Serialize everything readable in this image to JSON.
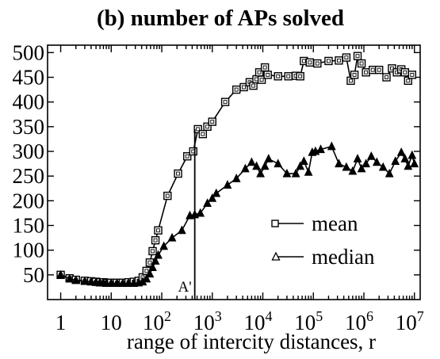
{
  "chart_data": {
    "type": "line",
    "title": "(b) number of APs solved",
    "xlabel": "range of intercity distances, r",
    "ylabel": "",
    "x_scale": "log",
    "xlim": [
      0.55,
      13000000
    ],
    "ylim": [
      0,
      515
    ],
    "x_ticks": [
      {
        "value": 1,
        "label": "1",
        "base": "1",
        "exp": ""
      },
      {
        "value": 10,
        "label": "10",
        "base": "10",
        "exp": ""
      },
      {
        "value": 100,
        "label": "10^2",
        "base": "10",
        "exp": "2"
      },
      {
        "value": 1000,
        "label": "10^3",
        "base": "10",
        "exp": "3"
      },
      {
        "value": 10000,
        "label": "10^4",
        "base": "10",
        "exp": "4"
      },
      {
        "value": 100000,
        "label": "10^5",
        "base": "10",
        "exp": "5"
      },
      {
        "value": 1000000,
        "label": "10^6",
        "base": "10",
        "exp": "6"
      },
      {
        "value": 10000000,
        "label": "10^7",
        "base": "10",
        "exp": "7"
      }
    ],
    "y_ticks": [
      {
        "value": 50,
        "label": "50"
      },
      {
        "value": 100,
        "label": "100"
      },
      {
        "value": 150,
        "label": "150"
      },
      {
        "value": 200,
        "label": "200"
      },
      {
        "value": 250,
        "label": "250"
      },
      {
        "value": 300,
        "label": "300"
      },
      {
        "value": 350,
        "label": "350"
      },
      {
        "value": 400,
        "label": "400"
      },
      {
        "value": 450,
        "label": "450"
      },
      {
        "value": 500,
        "label": "500"
      }
    ],
    "grid": false,
    "legend_position": "center-right",
    "annotation": {
      "label": "A'",
      "x": 450
    },
    "series": [
      {
        "name": "mean",
        "marker": "square",
        "points": [
          {
            "x": 1,
            "y": 50
          },
          {
            "x": 1.5,
            "y": 43
          },
          {
            "x": 2,
            "y": 40
          },
          {
            "x": 3,
            "y": 38
          },
          {
            "x": 4,
            "y": 37
          },
          {
            "x": 5,
            "y": 36
          },
          {
            "x": 6,
            "y": 35
          },
          {
            "x": 7,
            "y": 35
          },
          {
            "x": 8,
            "y": 34
          },
          {
            "x": 10,
            "y": 34
          },
          {
            "x": 13,
            "y": 34
          },
          {
            "x": 17,
            "y": 34
          },
          {
            "x": 22,
            "y": 35
          },
          {
            "x": 28,
            "y": 36
          },
          {
            "x": 35,
            "y": 38
          },
          {
            "x": 42,
            "y": 45
          },
          {
            "x": 50,
            "y": 58
          },
          {
            "x": 58,
            "y": 75
          },
          {
            "x": 66,
            "y": 98
          },
          {
            "x": 75,
            "y": 120
          },
          {
            "x": 85,
            "y": 140
          },
          {
            "x": 130,
            "y": 210
          },
          {
            "x": 210,
            "y": 255
          },
          {
            "x": 320,
            "y": 290
          },
          {
            "x": 420,
            "y": 300
          },
          {
            "x": 520,
            "y": 345
          },
          {
            "x": 650,
            "y": 335
          },
          {
            "x": 800,
            "y": 350
          },
          {
            "x": 1000,
            "y": 360
          },
          {
            "x": 1800,
            "y": 400
          },
          {
            "x": 3000,
            "y": 425
          },
          {
            "x": 4200,
            "y": 430
          },
          {
            "x": 5500,
            "y": 440
          },
          {
            "x": 6500,
            "y": 433
          },
          {
            "x": 7500,
            "y": 446
          },
          {
            "x": 8500,
            "y": 460
          },
          {
            "x": 9500,
            "y": 445
          },
          {
            "x": 11000,
            "y": 470
          },
          {
            "x": 12500,
            "y": 455
          },
          {
            "x": 20000,
            "y": 452
          },
          {
            "x": 32000,
            "y": 452
          },
          {
            "x": 45000,
            "y": 453
          },
          {
            "x": 55000,
            "y": 452
          },
          {
            "x": 65000,
            "y": 483
          },
          {
            "x": 85000,
            "y": 480
          },
          {
            "x": 120000,
            "y": 478
          },
          {
            "x": 200000,
            "y": 483
          },
          {
            "x": 320000,
            "y": 484
          },
          {
            "x": 450000,
            "y": 490
          },
          {
            "x": 550000,
            "y": 443
          },
          {
            "x": 650000,
            "y": 455
          },
          {
            "x": 750000,
            "y": 493
          },
          {
            "x": 900000,
            "y": 478
          },
          {
            "x": 1100000,
            "y": 460
          },
          {
            "x": 1500000,
            "y": 465
          },
          {
            "x": 2000000,
            "y": 465
          },
          {
            "x": 2800000,
            "y": 450
          },
          {
            "x": 3600000,
            "y": 468
          },
          {
            "x": 4500000,
            "y": 460
          },
          {
            "x": 5500000,
            "y": 466
          },
          {
            "x": 6500000,
            "y": 460
          },
          {
            "x": 7500000,
            "y": 443
          },
          {
            "x": 9000000,
            "y": 455
          }
        ]
      },
      {
        "name": "median",
        "marker": "triangle",
        "points": [
          {
            "x": 1,
            "y": 50
          },
          {
            "x": 1.5,
            "y": 42
          },
          {
            "x": 2,
            "y": 39
          },
          {
            "x": 3,
            "y": 37
          },
          {
            "x": 4,
            "y": 36
          },
          {
            "x": 5,
            "y": 35
          },
          {
            "x": 6,
            "y": 34
          },
          {
            "x": 7,
            "y": 34
          },
          {
            "x": 8,
            "y": 33
          },
          {
            "x": 10,
            "y": 33
          },
          {
            "x": 13,
            "y": 33
          },
          {
            "x": 17,
            "y": 33
          },
          {
            "x": 22,
            "y": 33
          },
          {
            "x": 28,
            "y": 33
          },
          {
            "x": 35,
            "y": 34
          },
          {
            "x": 42,
            "y": 36
          },
          {
            "x": 50,
            "y": 42
          },
          {
            "x": 58,
            "y": 52
          },
          {
            "x": 66,
            "y": 65
          },
          {
            "x": 75,
            "y": 78
          },
          {
            "x": 85,
            "y": 90
          },
          {
            "x": 110,
            "y": 108
          },
          {
            "x": 160,
            "y": 125
          },
          {
            "x": 250,
            "y": 140
          },
          {
            "x": 360,
            "y": 170
          },
          {
            "x": 450,
            "y": 172
          },
          {
            "x": 580,
            "y": 175
          },
          {
            "x": 800,
            "y": 195
          },
          {
            "x": 1000,
            "y": 205
          },
          {
            "x": 1200,
            "y": 215
          },
          {
            "x": 2000,
            "y": 232
          },
          {
            "x": 3000,
            "y": 245
          },
          {
            "x": 4500,
            "y": 265
          },
          {
            "x": 6000,
            "y": 278
          },
          {
            "x": 7500,
            "y": 270
          },
          {
            "x": 9000,
            "y": 255
          },
          {
            "x": 11000,
            "y": 270
          },
          {
            "x": 13000,
            "y": 285
          },
          {
            "x": 20000,
            "y": 275
          },
          {
            "x": 30000,
            "y": 255
          },
          {
            "x": 45000,
            "y": 255
          },
          {
            "x": 55000,
            "y": 270
          },
          {
            "x": 65000,
            "y": 280
          },
          {
            "x": 80000,
            "y": 258
          },
          {
            "x": 95000,
            "y": 298
          },
          {
            "x": 110000,
            "y": 300
          },
          {
            "x": 140000,
            "y": 304
          },
          {
            "x": 230000,
            "y": 310
          },
          {
            "x": 320000,
            "y": 275
          },
          {
            "x": 450000,
            "y": 268
          },
          {
            "x": 600000,
            "y": 260
          },
          {
            "x": 750000,
            "y": 285
          },
          {
            "x": 900000,
            "y": 265
          },
          {
            "x": 1100000,
            "y": 275
          },
          {
            "x": 1400000,
            "y": 290
          },
          {
            "x": 1800000,
            "y": 278
          },
          {
            "x": 2400000,
            "y": 268
          },
          {
            "x": 3200000,
            "y": 255
          },
          {
            "x": 4200000,
            "y": 280
          },
          {
            "x": 5500000,
            "y": 298
          },
          {
            "x": 6500000,
            "y": 285
          },
          {
            "x": 7500000,
            "y": 270
          },
          {
            "x": 9000000,
            "y": 292
          },
          {
            "x": 10000000,
            "y": 275
          }
        ]
      }
    ]
  }
}
